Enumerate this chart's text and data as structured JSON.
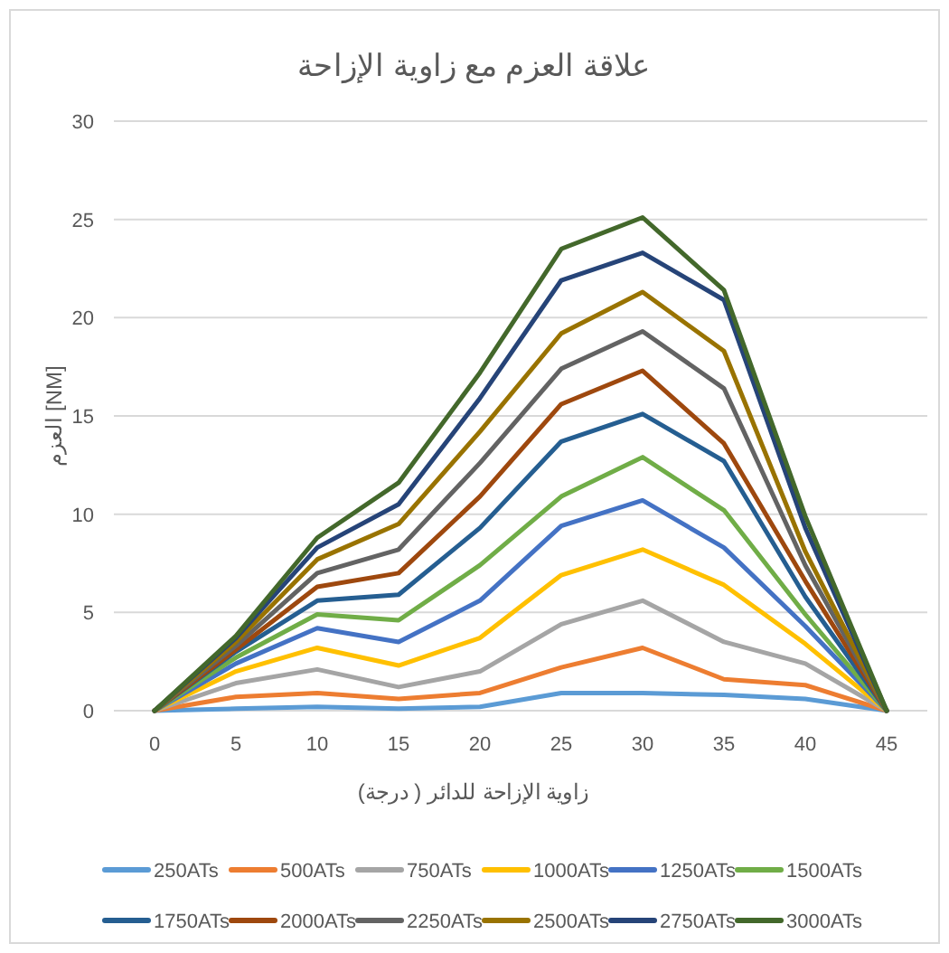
{
  "chart_data": {
    "type": "line",
    "title": "علاقة العزم مع زاوية الإزاحة",
    "xlabel": "زاوية الإزاحة للدائر ( درجة)",
    "ylabel": "العزم [NM]",
    "categories": [
      "0",
      "5",
      "10",
      "15",
      "20",
      "25",
      "30",
      "35",
      "40",
      "45"
    ],
    "ylim": [
      0,
      30
    ],
    "yticks": [
      0,
      5,
      10,
      15,
      20,
      25,
      30
    ],
    "grid": "y",
    "legend": "bottom",
    "series": [
      {
        "name": "250ATs",
        "color": "#5b9bd5",
        "values": [
          0,
          0.1,
          0.2,
          0.1,
          0.2,
          0.9,
          0.9,
          0.8,
          0.6,
          0
        ]
      },
      {
        "name": "500ATs",
        "color": "#ed7d31",
        "values": [
          0,
          0.7,
          0.9,
          0.6,
          0.9,
          2.2,
          3.2,
          1.6,
          1.3,
          0
        ]
      },
      {
        "name": "750ATs",
        "color": "#a5a5a5",
        "values": [
          0,
          1.4,
          2.1,
          1.2,
          2.0,
          4.4,
          5.6,
          3.5,
          2.4,
          0
        ]
      },
      {
        "name": "1000ATs",
        "color": "#ffc000",
        "values": [
          0,
          2.0,
          3.2,
          2.3,
          3.7,
          6.9,
          8.2,
          6.4,
          3.4,
          0
        ]
      },
      {
        "name": "1250ATs",
        "color": "#4472c4",
        "values": [
          0,
          2.4,
          4.2,
          3.5,
          5.6,
          9.4,
          10.7,
          8.3,
          4.3,
          0
        ]
      },
      {
        "name": "1500ATs",
        "color": "#70ad47",
        "values": [
          0,
          2.7,
          4.9,
          4.6,
          7.4,
          10.9,
          12.9,
          10.2,
          4.9,
          0
        ]
      },
      {
        "name": "1750ATs",
        "color": "#255e91",
        "values": [
          0,
          3.0,
          5.6,
          5.9,
          9.3,
          13.7,
          15.1,
          12.7,
          5.8,
          0
        ]
      },
      {
        "name": "2000ATs",
        "color": "#9e480e",
        "values": [
          0,
          3.1,
          6.3,
          7.0,
          10.9,
          15.6,
          17.3,
          13.6,
          6.6,
          0
        ]
      },
      {
        "name": "2250ATs",
        "color": "#636363",
        "values": [
          0,
          3.3,
          7.0,
          8.2,
          12.6,
          17.4,
          19.3,
          16.4,
          7.4,
          0
        ]
      },
      {
        "name": "2500ATs",
        "color": "#997300",
        "values": [
          0,
          3.5,
          7.7,
          9.5,
          14.2,
          19.2,
          21.3,
          18.3,
          8.1,
          0
        ]
      },
      {
        "name": "2750ATs",
        "color": "#264478",
        "values": [
          0,
          3.7,
          8.3,
          10.5,
          15.9,
          21.9,
          23.3,
          20.9,
          9.3,
          0
        ]
      },
      {
        "name": "3000ATs",
        "color": "#43682b",
        "values": [
          0,
          3.8,
          8.8,
          11.6,
          17.2,
          23.5,
          25.1,
          21.4,
          9.9,
          0
        ]
      }
    ]
  }
}
